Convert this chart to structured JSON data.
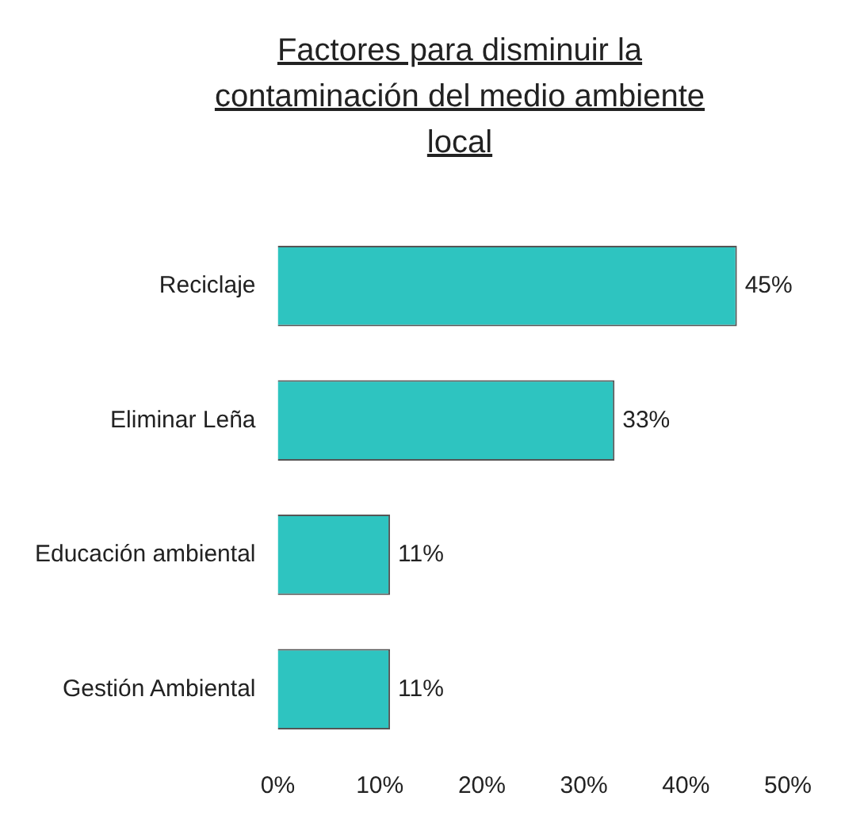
{
  "chart_data": {
    "type": "bar",
    "orientation": "horizontal",
    "title": "Factores para disminuir la contaminación del medio ambiente local",
    "categories": [
      "Reciclaje",
      "Eliminar Leña",
      "Educación ambiental",
      "Gestión Ambiental"
    ],
    "values": [
      45,
      33,
      11,
      11
    ],
    "color": "#2ec4c0",
    "value_labels": [
      "45%",
      "33%",
      "11%",
      "11%"
    ],
    "xlim": [
      0,
      50
    ],
    "xticks": [
      {
        "value": 0,
        "label": "0%"
      },
      {
        "value": 10,
        "label": "10%"
      },
      {
        "value": 20,
        "label": "20%"
      },
      {
        "value": 30,
        "label": "30%"
      },
      {
        "value": 40,
        "label": "40%"
      },
      {
        "value": 50,
        "label": "50%"
      }
    ],
    "grid": false,
    "legend": false
  }
}
